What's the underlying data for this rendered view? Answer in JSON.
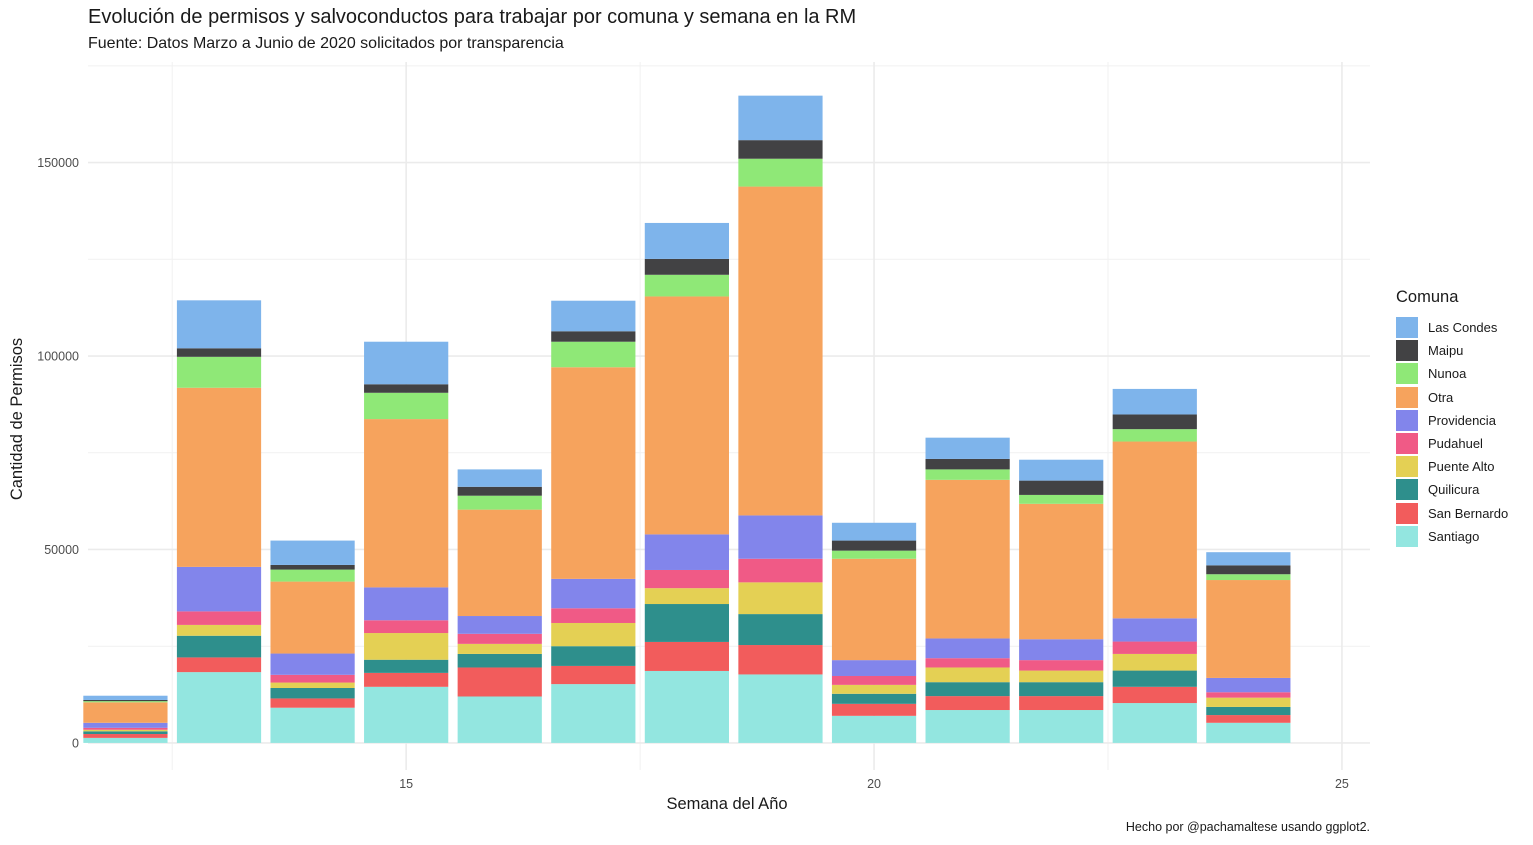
{
  "title": "Evolución de permisos y salvoconductos para trabajar por comuna y semana en la RM",
  "subtitle": "Fuente: Datos Marzo a Junio de 2020 solicitados por transparencia",
  "caption": "Hecho por @pachamaltese usando ggplot2.",
  "legend_title": "Comuna",
  "chart_data": {
    "type": "bar",
    "stacked": true,
    "xlabel": "Semana del Año",
    "ylabel": "Cantidad de Permisos",
    "xlim": [
      11.6,
      25.3
    ],
    "ylim": [
      -7000,
      176000
    ],
    "x_ticks": [
      15,
      20,
      25
    ],
    "y_ticks": [
      0,
      50000,
      100000,
      150000
    ],
    "grid": true,
    "legend_position": "right",
    "categories": [
      12,
      13,
      14,
      15,
      16,
      17,
      18,
      19,
      20,
      21,
      22,
      23,
      24
    ],
    "series": [
      {
        "name": "Santiago",
        "color": "#93E6E0",
        "values": [
          1300,
          18300,
          9100,
          14500,
          12000,
          15200,
          18600,
          17700,
          7000,
          8500,
          8500,
          10300,
          5200
        ]
      },
      {
        "name": "San Bernardo",
        "color": "#F25C5C",
        "values": [
          1000,
          3800,
          2400,
          3600,
          7500,
          4700,
          7500,
          7600,
          3100,
          3600,
          3600,
          4200,
          2000
        ]
      },
      {
        "name": "Quilicura",
        "color": "#2E8F8C",
        "values": [
          700,
          5600,
          2700,
          3400,
          3500,
          5100,
          9800,
          8000,
          2600,
          3600,
          3600,
          4200,
          2100
        ]
      },
      {
        "name": "Puente Alto",
        "color": "#E4D054",
        "values": [
          400,
          2800,
          1400,
          6900,
          2600,
          6000,
          4100,
          8200,
          2300,
          3800,
          3000,
          4300,
          2400
        ]
      },
      {
        "name": "Pudahuel",
        "color": "#F05A86",
        "values": [
          500,
          3500,
          2000,
          3300,
          2600,
          3800,
          4700,
          6100,
          2300,
          2400,
          2700,
          3200,
          1400
        ]
      },
      {
        "name": "Providencia",
        "color": "#8285EB",
        "values": [
          1300,
          11500,
          5500,
          8500,
          4600,
          7600,
          9200,
          11200,
          4100,
          5100,
          5400,
          6000,
          3700
        ]
      },
      {
        "name": "Otra",
        "color": "#F6A35D",
        "values": [
          5300,
          46300,
          18600,
          43500,
          27500,
          54700,
          61500,
          85000,
          26200,
          41000,
          35000,
          45700,
          25300
        ]
      },
      {
        "name": "Nunoa",
        "color": "#8FE877",
        "values": [
          300,
          8000,
          3100,
          6800,
          3600,
          6600,
          5600,
          7200,
          2100,
          2700,
          2300,
          3200,
          1500
        ]
      },
      {
        "name": "Maipu",
        "color": "#424244",
        "values": [
          300,
          2200,
          1200,
          2200,
          2300,
          2700,
          4100,
          4800,
          2600,
          2700,
          3700,
          3800,
          2300
        ]
      },
      {
        "name": "Las Condes",
        "color": "#7EB4EB",
        "values": [
          1100,
          12400,
          6300,
          11000,
          4500,
          7900,
          9300,
          11500,
          4600,
          5500,
          5400,
          6600,
          3400
        ]
      }
    ]
  }
}
